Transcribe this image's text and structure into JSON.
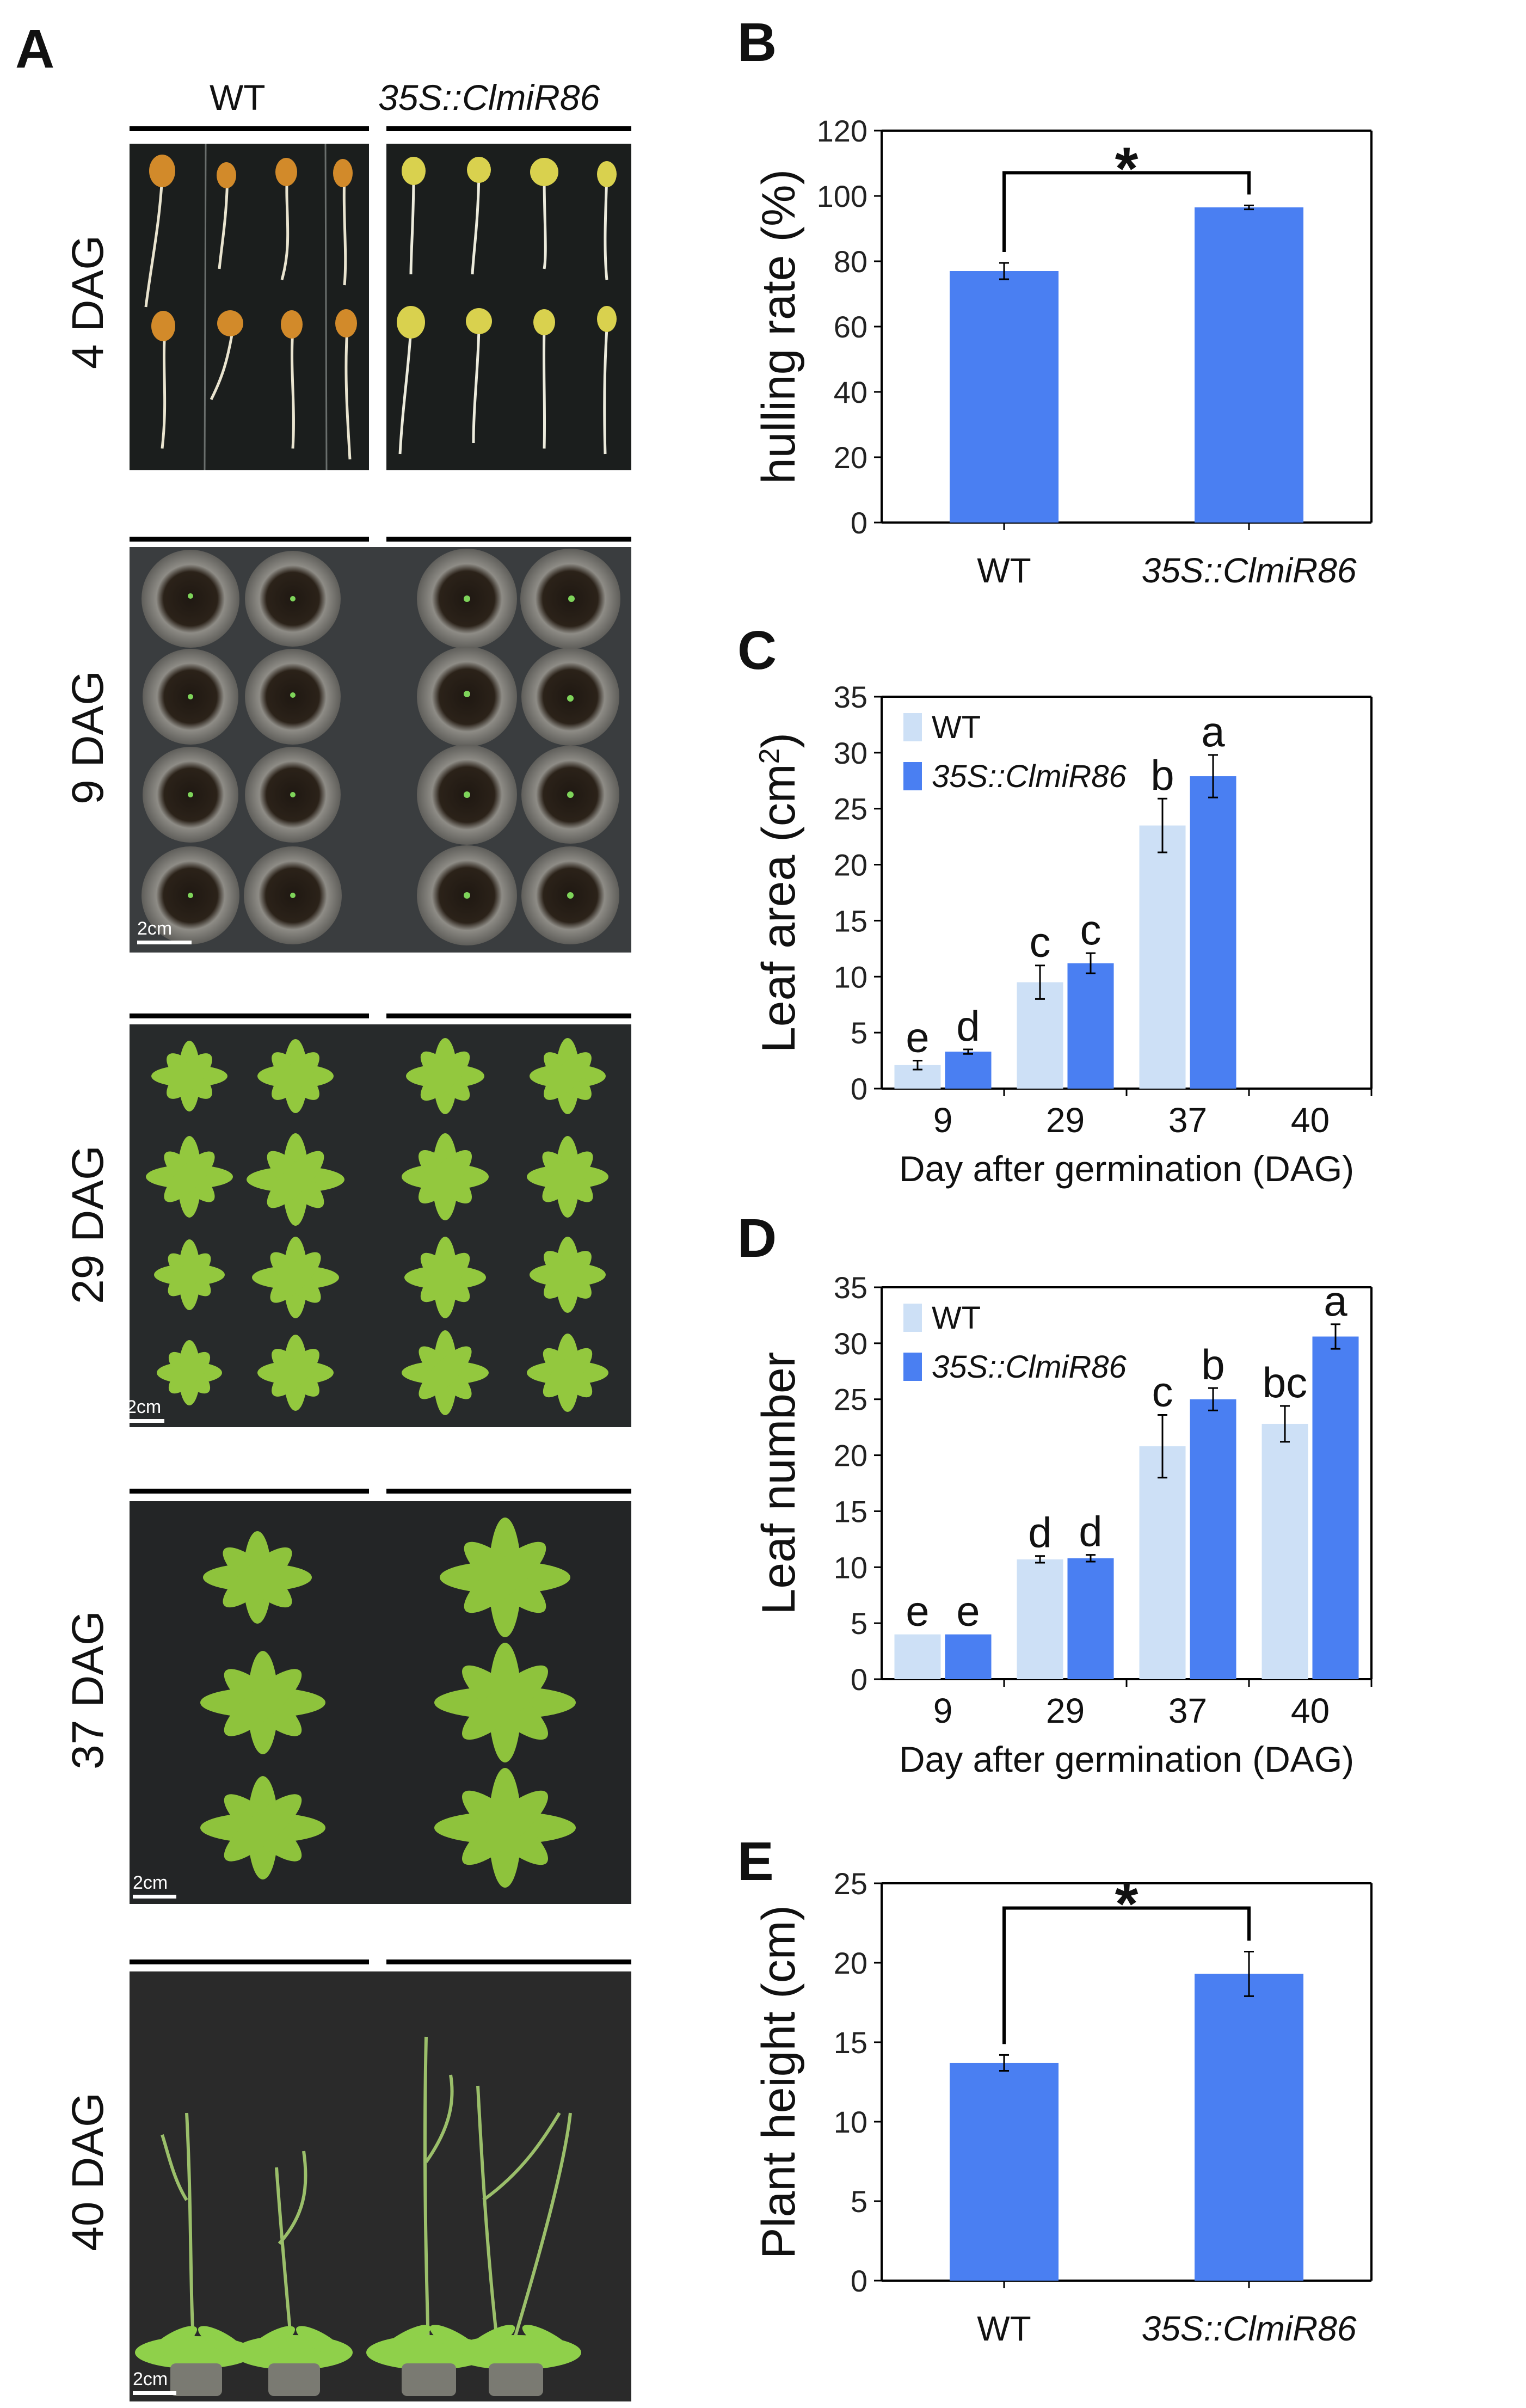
{
  "panelA": {
    "letter": "A",
    "col_wt": "WT",
    "col_oe": "35S::ClmiR86",
    "rows": [
      "4 DAG",
      "9 DAG",
      "29 DAG",
      "37 DAG",
      "40 DAG"
    ],
    "scale": "2cm"
  },
  "chart_data": [
    {
      "id": "B",
      "letter": "B",
      "type": "bar",
      "categories": [
        "WT",
        "35S::ClmiR86"
      ],
      "values": [
        77,
        96.5
      ],
      "errors": [
        2.5,
        0.6
      ],
      "ylabel": "hulling rate (%)",
      "ylim": [
        0,
        120
      ],
      "yticks": [
        0,
        20,
        40,
        60,
        80,
        100,
        120
      ],
      "significance": "*",
      "color": "#4a7ff2"
    },
    {
      "id": "C",
      "letter": "C",
      "type": "bar",
      "categories": [
        "9",
        "29",
        "37",
        "40"
      ],
      "xlabel": "Day after germination (DAG)",
      "ylabel": "Leaf area (cm",
      "ylabel_sup": "2",
      "ylabel_end": ")",
      "ylim": [
        0,
        35
      ],
      "yticks": [
        0,
        5,
        10,
        15,
        20,
        25,
        30,
        35
      ],
      "series": [
        {
          "name": "WT",
          "color": "#cde0f6",
          "values": [
            2.1,
            9.5,
            23.5,
            null
          ],
          "errors": [
            0.4,
            1.5,
            2.4,
            null
          ],
          "letters": [
            "e",
            "c",
            "b",
            ""
          ]
        },
        {
          "name": "35S::ClmiR86",
          "color": "#4a7ff2",
          "values": [
            3.3,
            11.2,
            27.9,
            null
          ],
          "errors": [
            0.2,
            0.9,
            1.9,
            null
          ],
          "letters": [
            "d",
            "c",
            "a",
            ""
          ]
        }
      ]
    },
    {
      "id": "D",
      "letter": "D",
      "type": "bar",
      "categories": [
        "9",
        "29",
        "37",
        "40"
      ],
      "xlabel": "Day after germination (DAG)",
      "ylabel": "Leaf number",
      "ylim": [
        0,
        35
      ],
      "yticks": [
        0,
        5,
        10,
        15,
        20,
        25,
        30,
        35
      ],
      "series": [
        {
          "name": "WT",
          "color": "#cde0f6",
          "values": [
            4,
            10.7,
            20.8,
            22.8
          ],
          "errors": [
            0,
            0.3,
            2.8,
            1.6
          ],
          "letters": [
            "e",
            "d",
            "c",
            "bc"
          ]
        },
        {
          "name": "35S::ClmiR86",
          "color": "#4a7ff2",
          "values": [
            4,
            10.8,
            25,
            30.6
          ],
          "errors": [
            0,
            0.3,
            1.0,
            1.1
          ],
          "letters": [
            "e",
            "d",
            "b",
            "a"
          ]
        }
      ]
    },
    {
      "id": "E",
      "letter": "E",
      "type": "bar",
      "categories": [
        "WT",
        "35S::ClmiR86"
      ],
      "values": [
        13.7,
        19.3
      ],
      "errors": [
        0.5,
        1.4
      ],
      "ylabel": "Plant height (cm)",
      "ylim": [
        0,
        25
      ],
      "yticks": [
        0,
        5,
        10,
        15,
        20,
        25
      ],
      "significance": "*",
      "color": "#4a7ff2"
    }
  ]
}
